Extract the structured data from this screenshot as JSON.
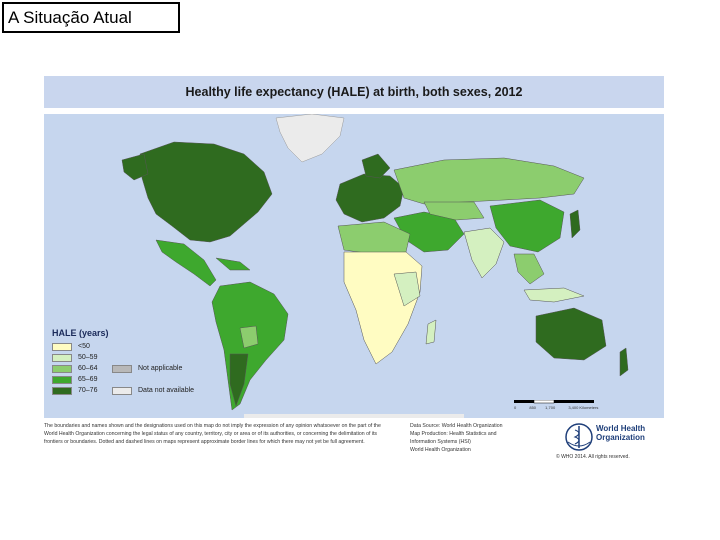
{
  "slide": {
    "title": "A Situação Atual"
  },
  "map": {
    "title": "Healthy life expectancy (HALE) at birth, both sexes, 2012",
    "colors": {
      "ocean": "#c6d6ee",
      "header": "#c9d6ee"
    },
    "legend": {
      "title": "HALE (years)",
      "items": [
        {
          "label": "<50",
          "color": "#fffcc2"
        },
        {
          "label": "50–59",
          "color": "#d4f0c0"
        },
        {
          "label": "60–64",
          "color": "#8ccd6e"
        },
        {
          "label": "65–69",
          "color": "#3ea82e"
        },
        {
          "label": "70–76",
          "color": "#2f6b1f"
        }
      ],
      "extra": [
        {
          "label": "Not applicable",
          "color": "#b8b8b8"
        },
        {
          "label": "Data not available",
          "color": "#ebebeb"
        }
      ]
    },
    "disclaimer": "The boundaries and names shown and the designations used on this map do not imply the expression of any opinion whatsoever on the part of the World Health Organization concerning the legal status of any country, territory, city or area or of its authorities, or concerning the delimitation of its frontiers or boundaries. Dotted and dashed lines on maps represent approximate border lines for which there may not yet be full agreement.",
    "source": {
      "line1": "Data Source: World Health Organization",
      "line2": "Map Production: Health Statistics and",
      "line3": "Information Systems (HSI)",
      "line4": "World Health Organization"
    },
    "logo": {
      "line1": "World Health",
      "line2": "Organization",
      "copyright": "© WHO 2014. All rights reserved."
    },
    "scale": {
      "labels": [
        "0",
        "850",
        "1,700",
        "3,400 Kilometers"
      ]
    }
  }
}
